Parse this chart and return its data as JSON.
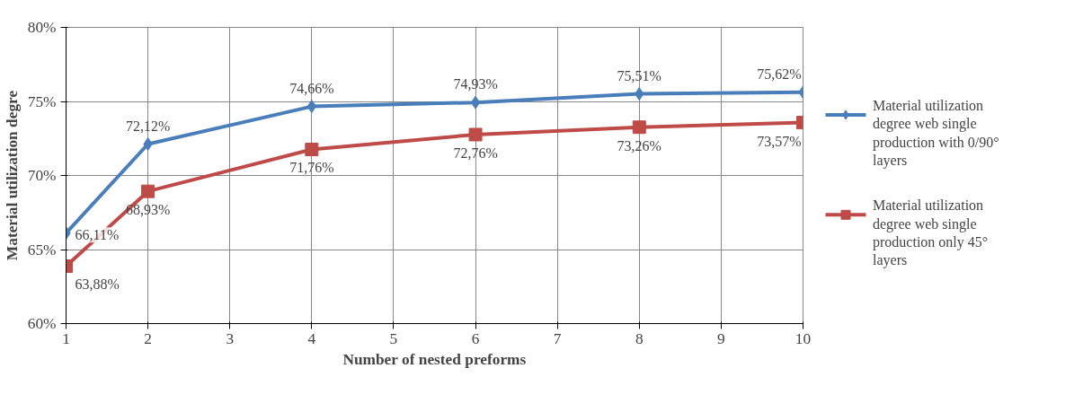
{
  "chart_data": {
    "type": "line",
    "xlabel": "Number of nested preforms",
    "ylabel": "Material utilization degre",
    "x": [
      1,
      2,
      4,
      6,
      8,
      10
    ],
    "series": [
      {
        "name": "Material utilization degree web single production with 0/90° layers",
        "color": "#4a7ebb",
        "marker": "diamond",
        "values": [
          66.11,
          72.12,
          74.66,
          74.93,
          75.51,
          75.62
        ],
        "value_labels": [
          "66,11%",
          "72,12%",
          "74,66%",
          "74,93%",
          "75,51%",
          "75,62%"
        ]
      },
      {
        "name": "Material utilization degree web single production only 45° layers",
        "color": "#be4b48",
        "marker": "square",
        "values": [
          63.88,
          68.93,
          71.76,
          72.76,
          73.26,
          73.57
        ],
        "value_labels": [
          "63,88%",
          "68,93%",
          "71,76%",
          "72,76%",
          "73,26%",
          "73,57%"
        ]
      }
    ],
    "xlim": [
      1,
      10
    ],
    "xticks": [
      1,
      2,
      3,
      4,
      5,
      6,
      7,
      8,
      9,
      10
    ],
    "ylim": [
      60,
      80
    ],
    "yticks": [
      {
        "value": 60,
        "label": "60%"
      },
      {
        "value": 65,
        "label": "65%"
      },
      {
        "value": 70,
        "label": "70%"
      },
      {
        "value": 75,
        "label": "75%"
      },
      {
        "value": 80,
        "label": "80%"
      }
    ],
    "grid": true,
    "legend": "right",
    "line_style": "solid"
  }
}
